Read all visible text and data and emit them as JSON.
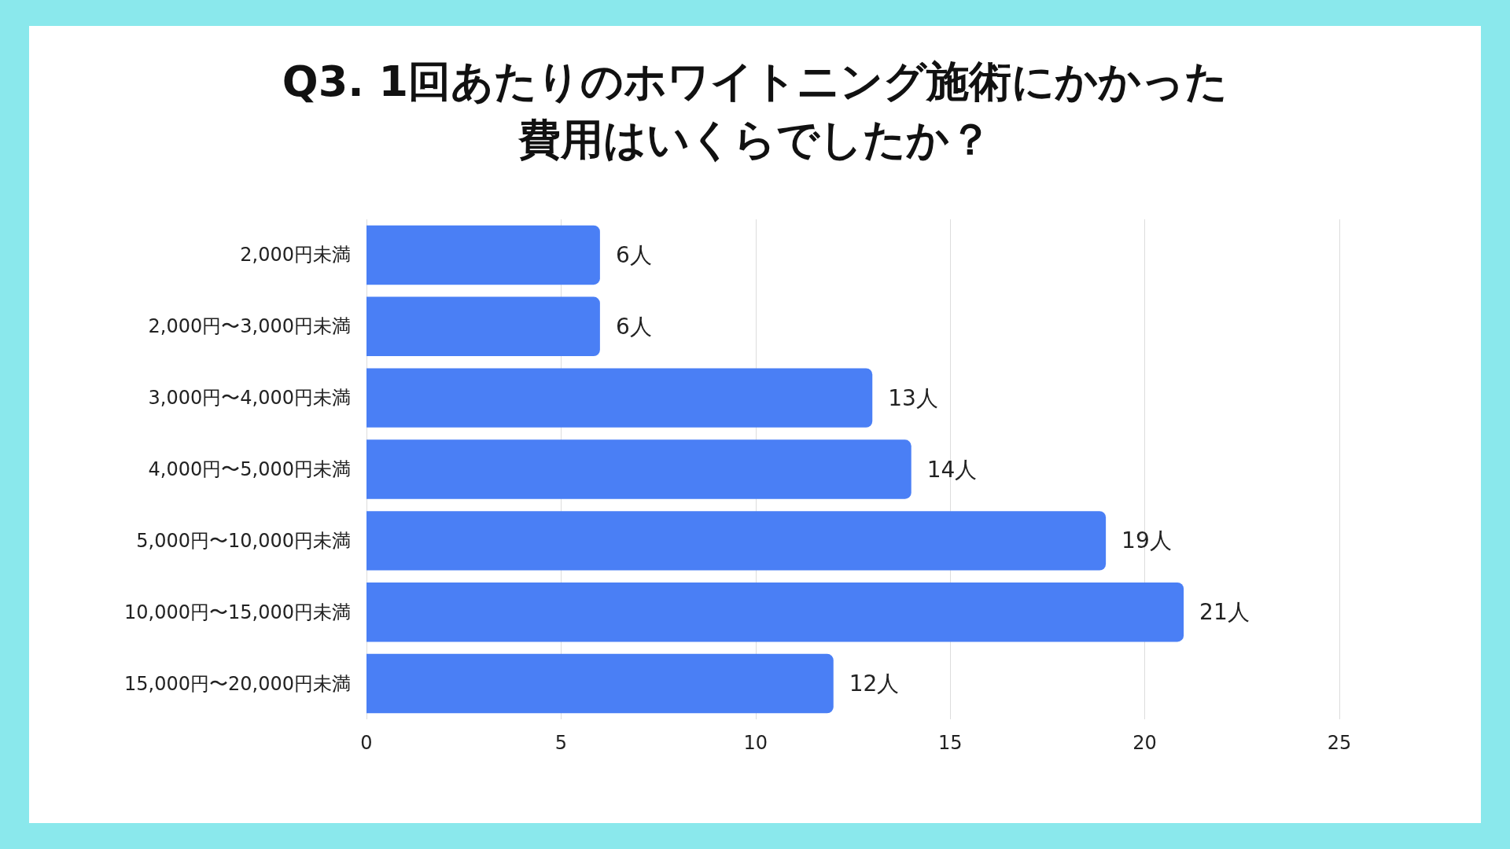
{
  "chart_data": {
    "type": "bar",
    "orientation": "horizontal",
    "title": "Q3. 1回あたりのホワイトニング施術にかかった費用はいくらでしたか？",
    "categories": [
      "2,000円未満",
      "2,000円〜3,000円未満",
      "3,000円〜4,000円未満",
      "4,000円〜5,000円未満",
      "5,000円〜10,000円未満",
      "10,000円〜15,000円未満",
      "15,000円〜20,000円未満"
    ],
    "values": [
      6,
      6,
      13,
      14,
      19,
      21,
      12
    ],
    "value_labels": [
      "6人",
      "6人",
      "13人",
      "14人",
      "19人",
      "21人",
      "12人"
    ],
    "color": "#4a7ff5",
    "xlim": [
      0,
      25
    ],
    "xticks": [
      0,
      5,
      10,
      15,
      20,
      25
    ],
    "grid": "x"
  }
}
